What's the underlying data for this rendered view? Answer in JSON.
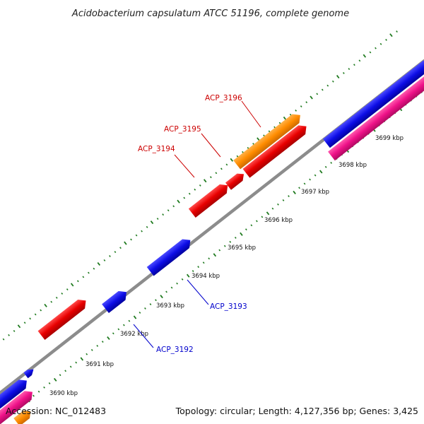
{
  "title": "Acidobacterium capsulatum ATCC 51196, complete genome",
  "footer": {
    "accession": "Accession: NC_012483",
    "summary": "Topology: circular; Length: 4,127,356 bp; Genes: 3,425"
  },
  "colors": {
    "backbone": "#8c8c8c",
    "tick": "#1f7a1f",
    "red": "#e80000",
    "blue": "#0d0de6",
    "orange": "#ff8c00",
    "pink": "#ee1188",
    "label_red": "#cc0000",
    "label_blue": "#0000cc"
  },
  "scale": {
    "unit": "kbp",
    "tick_labels": [
      "3690 kbp",
      "3691 kbp",
      "3692 kbp",
      "3693 kbp",
      "3694 kbp",
      "3695 kbp",
      "3696 kbp",
      "3697 kbp",
      "3698 kbp",
      "3699 kbp"
    ]
  },
  "gene_labels": [
    {
      "name": "ACP_3192",
      "color": "blue"
    },
    {
      "name": "ACP_3193",
      "color": "blue"
    },
    {
      "name": "ACP_3194",
      "color": "red"
    },
    {
      "name": "ACP_3195",
      "color": "red"
    },
    {
      "name": "ACP_3196",
      "color": "red"
    }
  ]
}
